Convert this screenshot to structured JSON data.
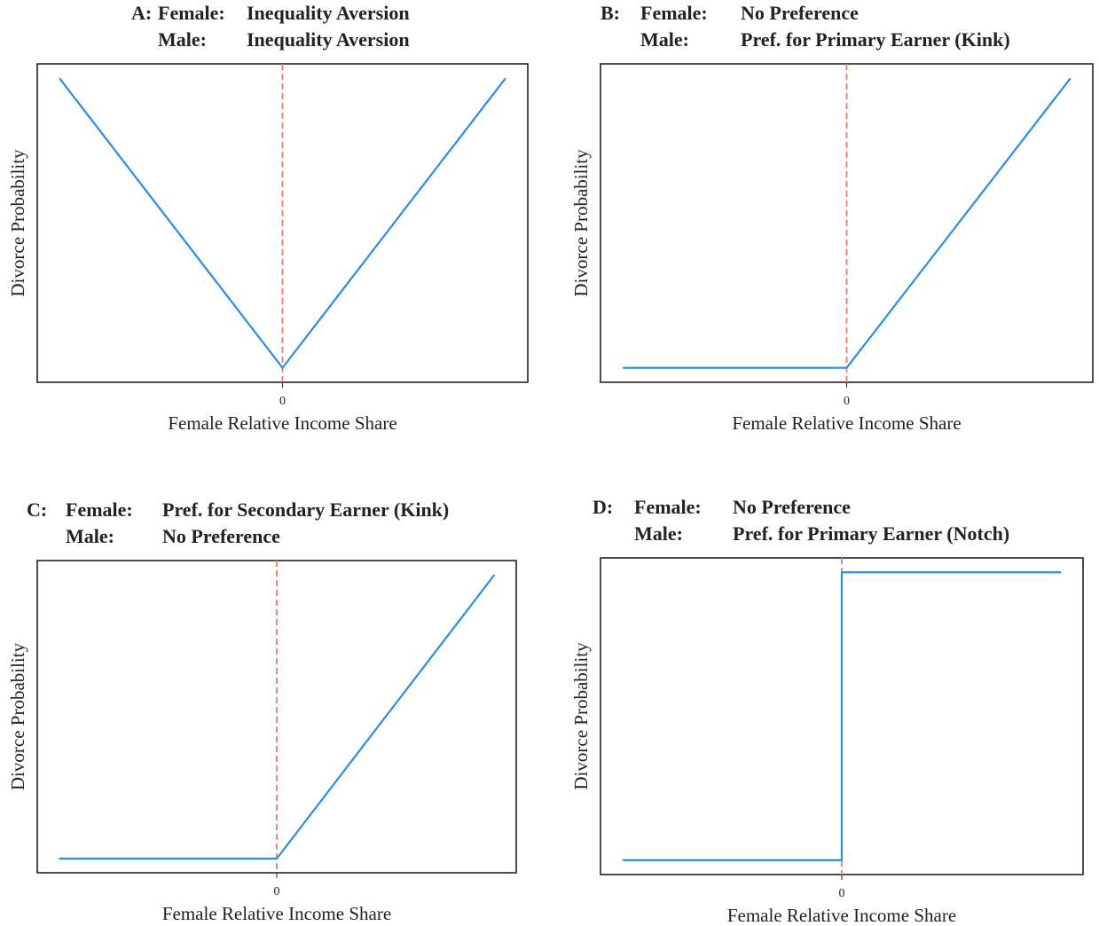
{
  "chart_data": [
    {
      "type": "line",
      "panel": "A:",
      "title_rows": [
        [
          "Female:",
          "Inequality Aversion"
        ],
        [
          "Male:",
          "Inequality Aversion"
        ]
      ],
      "x_label": "Female Relative Income Share",
      "y_label": "Divorce Probability",
      "x": [
        -1,
        0,
        1
      ],
      "values": [
        1,
        0,
        1
      ],
      "color": "#2b8ce6",
      "xlim": [
        -1.1,
        1.1
      ],
      "ylim": [
        -0.05,
        1.05
      ],
      "xticks": [
        0
      ],
      "vline": 0,
      "vline_color": "#f07a6a"
    },
    {
      "type": "line",
      "panel": "B:",
      "title_rows": [
        [
          "Female:",
          "No Preference"
        ],
        [
          "Male:",
          "Pref. for Primary Earner (Kink)"
        ]
      ],
      "x_label": "Female Relative Income Share",
      "y_label": "Divorce Probability",
      "x": [
        -1,
        0,
        1
      ],
      "values": [
        0,
        0,
        1
      ],
      "color": "#2b8ce6",
      "xlim": [
        -1.1,
        1.1
      ],
      "ylim": [
        -0.05,
        1.05
      ],
      "xticks": [
        0
      ],
      "vline": 0,
      "vline_color": "#f07a6a"
    },
    {
      "type": "line",
      "panel": "C:",
      "title_rows": [
        [
          "Female:",
          "Pref. for Secondary Earner (Kink)"
        ],
        [
          "Male:",
          "No Preference"
        ]
      ],
      "x_label": "Female Relative Income Share",
      "y_label": "Divorce Probability",
      "x": [
        -1,
        0,
        1
      ],
      "values": [
        0,
        0,
        1
      ],
      "color": "#2b8ce6",
      "xlim": [
        -1.1,
        1.1
      ],
      "ylim": [
        -0.05,
        1.05
      ],
      "xticks": [
        0
      ],
      "vline": 0,
      "vline_color": "#f07a6a"
    },
    {
      "type": "line",
      "panel": "D:",
      "title_rows": [
        [
          "Female:",
          "No Preference"
        ],
        [
          "Male:",
          "Pref. for Primary Earner (Notch)"
        ]
      ],
      "x_label": "Female Relative Income Share",
      "y_label": "Divorce Probability",
      "x": [
        -1,
        0,
        0,
        1
      ],
      "values": [
        0,
        0,
        1,
        1
      ],
      "color": "#2b8ce6",
      "xlim": [
        -1.1,
        1.1
      ],
      "ylim": [
        -0.05,
        1.05
      ],
      "xticks": [
        0
      ],
      "vline": 0,
      "vline_color": "#f07a6a"
    }
  ]
}
